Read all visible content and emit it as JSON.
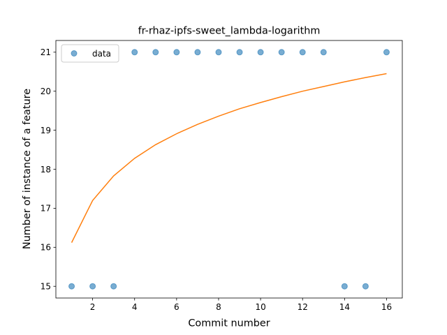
{
  "chart_data": {
    "type": "scatter",
    "title": "fr-rhaz-ipfs-sweet_lambda-logarithm",
    "xlabel": "Commit number",
    "ylabel": "Number of instance of a feature",
    "xlim": [
      0.25,
      16.75
    ],
    "ylim": [
      14.7,
      21.3
    ],
    "xticks": [
      2,
      4,
      6,
      8,
      10,
      12,
      14,
      16
    ],
    "yticks": [
      15,
      16,
      17,
      18,
      19,
      20,
      21
    ],
    "legend": {
      "placement": "top-left",
      "entries": [
        "data"
      ]
    },
    "grid": false,
    "series": [
      {
        "name": "data",
        "kind": "scatter",
        "color": "#1f77b4",
        "x": [
          1,
          2,
          3,
          4,
          5,
          6,
          7,
          8,
          9,
          10,
          11,
          12,
          13,
          14,
          15,
          16
        ],
        "y": [
          15,
          15,
          15,
          21,
          21,
          21,
          21,
          21,
          21,
          21,
          21,
          21,
          21,
          15,
          15,
          21
        ]
      },
      {
        "kind": "line",
        "color": "#ff7f0e",
        "x": [
          1,
          2,
          3,
          4,
          5,
          6,
          7,
          8,
          9,
          10,
          11,
          12,
          13,
          14,
          15,
          16
        ],
        "y": [
          16.12,
          17.2,
          17.83,
          18.28,
          18.63,
          18.91,
          19.15,
          19.36,
          19.55,
          19.71,
          19.86,
          20.0,
          20.12,
          20.24,
          20.35,
          20.45
        ]
      }
    ]
  }
}
